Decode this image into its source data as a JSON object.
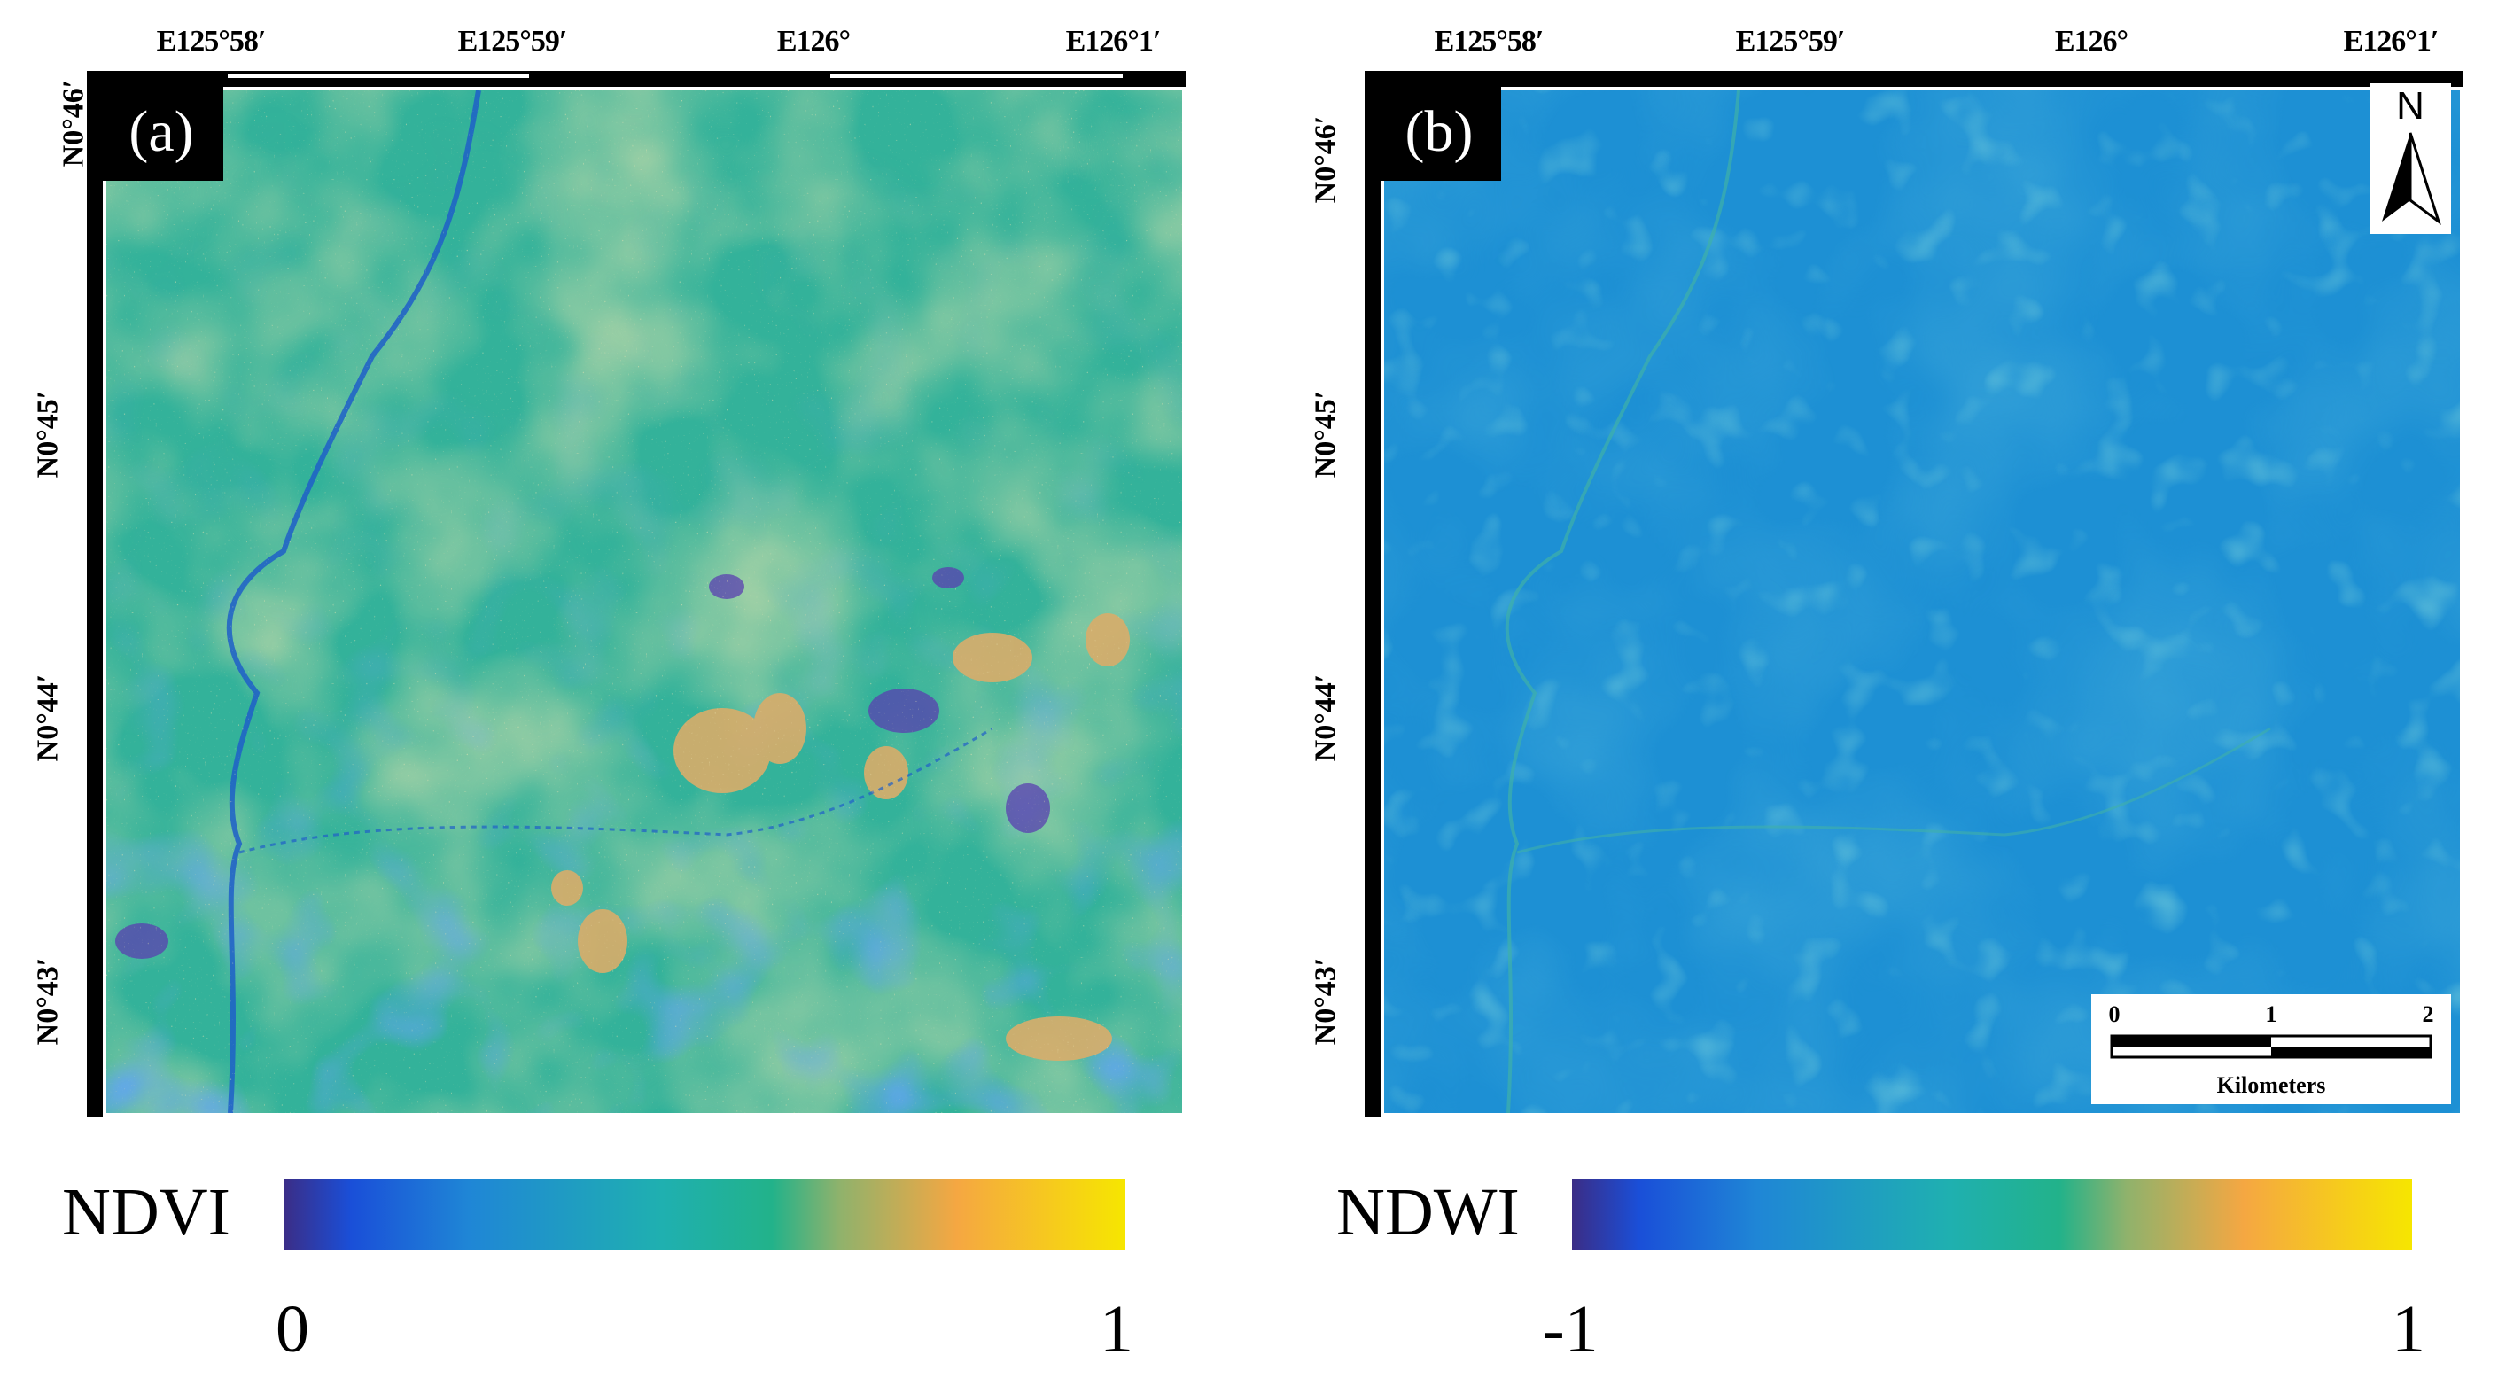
{
  "panels": [
    {
      "label": "(a)",
      "lon_ticks": [
        "E125°58′",
        "E125°59′",
        "E126°",
        "E126°1′"
      ],
      "lat_ticks": [
        "N0°46′",
        "N0°45′",
        "N0°44′",
        "N0°43′"
      ],
      "legend": {
        "title": "NDVI",
        "min": "0",
        "max": "1"
      }
    },
    {
      "label": "(b)",
      "lon_ticks": [
        "E125°58′",
        "E125°59′",
        "E126°",
        "E126°1′"
      ],
      "lat_ticks": [
        "N0°46′",
        "N0°45′",
        "N0°44′",
        "N0°43′"
      ],
      "legend": {
        "title": "NDWI",
        "min": "-1",
        "max": "1"
      }
    }
  ],
  "north_arrow": {
    "letter": "N"
  },
  "scale_bar": {
    "ticks": [
      "0",
      "1",
      "2"
    ],
    "units": "Kilometers"
  },
  "colors": {
    "ramp": [
      "#3b2d86",
      "#1a4fd8",
      "#1f86d6",
      "#1fb0b0",
      "#22b28a",
      "#8fb26c",
      "#f5a742",
      "#f6e600"
    ],
    "ndvi_base": "#34b49a",
    "ndwi_base": "#1d8fd4"
  }
}
